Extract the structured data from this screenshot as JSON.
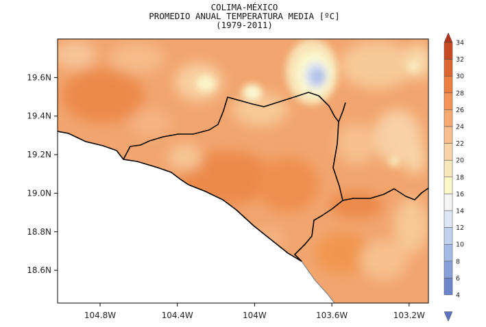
{
  "map": {
    "title_lines": [
      "COLIMA-MÉXICO",
      "PROMEDIO ANUAL TEMPERATURA MEDIA [ºC]",
      "(1979-2011)"
    ],
    "lat_ticks": [
      "19.6N",
      "19.4N",
      "19.2N",
      "19.0N",
      "18.8N",
      "18.6N"
    ],
    "lon_ticks": [
      "104.8W",
      "104.4W",
      "104W",
      "103.6W",
      "103.2W"
    ],
    "lat_values": [
      19.6,
      19.4,
      19.2,
      19.0,
      18.8,
      18.6
    ],
    "lon_values": [
      -104.8,
      -104.4,
      -104.0,
      -103.6,
      -103.2
    ],
    "extent": {
      "lon_min": -105.02,
      "lon_max": -103.1,
      "lat_min": 18.43,
      "lat_max": 19.8
    },
    "land_color": "#f2a56e",
    "sea_color": "#ffffff"
  },
  "colorbar": {
    "labels": [
      "34",
      "32",
      "30",
      "28",
      "26",
      "24",
      "22",
      "20",
      "18",
      "16",
      "14",
      "12",
      "10",
      "8",
      "6",
      "4"
    ],
    "colors": [
      "#b2331a",
      "#c84a22",
      "#dd6530",
      "#ec7d3f",
      "#f39456",
      "#f5aa72",
      "#f7bf8e",
      "#f8d3a8",
      "#f7e7bd",
      "#fbf8c8",
      "#f4f4f4",
      "#dde6f5",
      "#c1d2ef",
      "#a3bbe5",
      "#869fd9",
      "#6c85cc",
      "#5b74c2"
    ]
  }
}
